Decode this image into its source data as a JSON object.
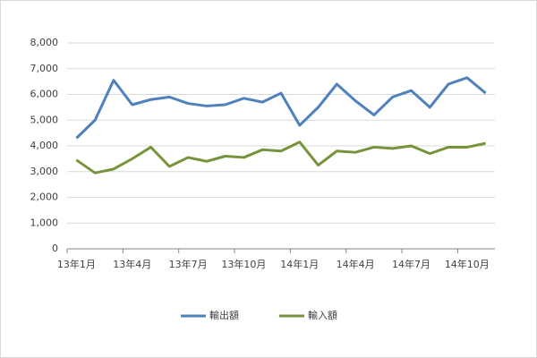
{
  "chart_data": {
    "type": "line",
    "categories": [
      "13年1月",
      null,
      null,
      "13年4月",
      null,
      null,
      "13年7月",
      null,
      null,
      "13年10月",
      null,
      null,
      "14年1月",
      null,
      null,
      "14年4月",
      null,
      null,
      "14年7月",
      null,
      null,
      "14年10月",
      null
    ],
    "series": [
      {
        "name": "輸出額",
        "color": "#4f81bd",
        "values": [
          4300,
          5000,
          6550,
          5600,
          5800,
          5900,
          5650,
          5550,
          5600,
          5850,
          5700,
          6050,
          4800,
          5500,
          6400,
          5750,
          5200,
          5900,
          6150,
          5500,
          6400,
          6650,
          6050
        ]
      },
      {
        "name": "輸入額",
        "color": "#77933c",
        "values": [
          3450,
          2950,
          3100,
          3500,
          3950,
          3200,
          3550,
          3400,
          3600,
          3550,
          3850,
          3800,
          4150,
          3250,
          3800,
          3750,
          3950,
          3900,
          4000,
          3700,
          3950,
          3950,
          4100
        ]
      }
    ],
    "ylim": [
      0,
      8000
    ],
    "yticks": [
      0,
      {
        "value": 1000,
        "label": "1,000"
      },
      {
        "value": 2000,
        "label": "2,000"
      },
      {
        "value": 3000,
        "label": "3,000"
      },
      {
        "value": 4000,
        "label": "4,000"
      },
      {
        "value": 5000,
        "label": "5,000"
      },
      {
        "value": 6000,
        "label": "6,000"
      },
      {
        "value": 7000,
        "label": "7,000"
      },
      {
        "value": 8000,
        "label": "8,000"
      }
    ],
    "grid": true,
    "legend": "bottom"
  }
}
